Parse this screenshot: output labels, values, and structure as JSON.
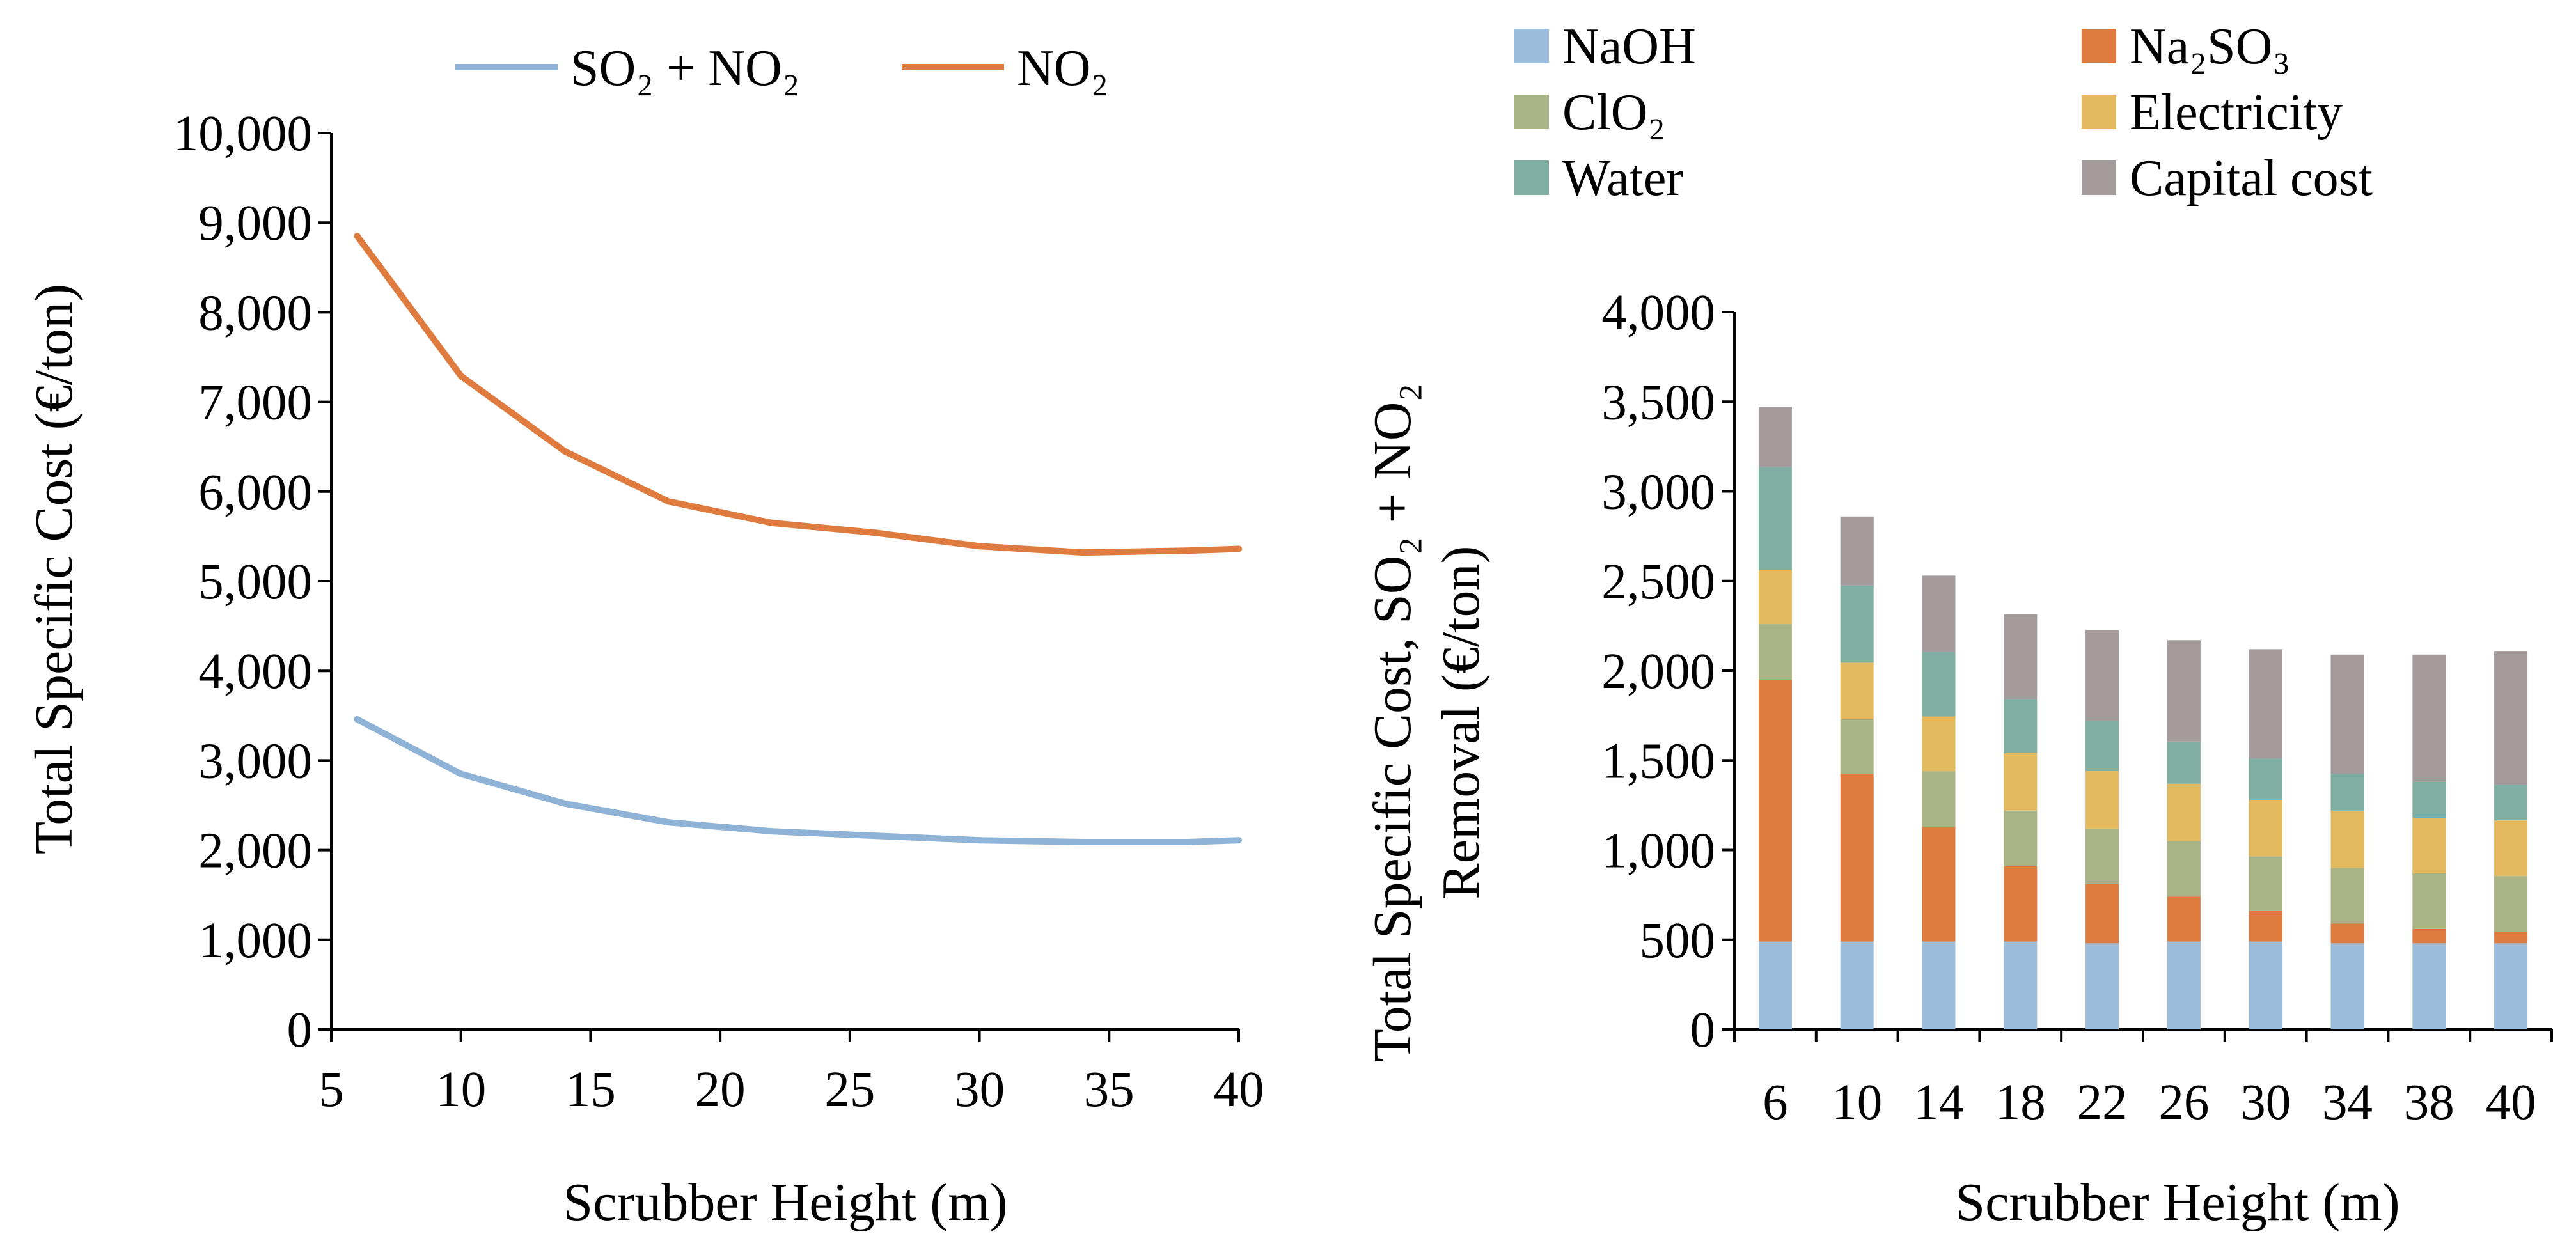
{
  "chart_data": [
    {
      "type": "line",
      "title": "",
      "xlabel": "Scrubber Height (m)",
      "ylabel": "Total Specific Cost (€/ton)",
      "xlim": [
        5,
        40
      ],
      "ylim": [
        0,
        10000
      ],
      "xticks": [
        "5",
        "10",
        "15",
        "20",
        "25",
        "30",
        "35",
        "40"
      ],
      "yticks": [
        "0",
        "1,000",
        "2,000",
        "3,000",
        "4,000",
        "5,000",
        "6,000",
        "7,000",
        "8,000",
        "9,000",
        "10,000"
      ],
      "legend_position": "top",
      "x": [
        6,
        10,
        14,
        18,
        22,
        26,
        30,
        34,
        38,
        40
      ],
      "series": [
        {
          "name": "SO₂ + NO₂",
          "color": "#8FB3D6",
          "values": [
            3460,
            2850,
            2520,
            2310,
            2210,
            2160,
            2110,
            2090,
            2090,
            2110
          ]
        },
        {
          "name": "NO₂",
          "color": "#E07B40",
          "values": [
            8850,
            7290,
            6450,
            5890,
            5650,
            5540,
            5390,
            5320,
            5340,
            5360
          ]
        }
      ]
    },
    {
      "type": "bar",
      "stacked": true,
      "title": "",
      "xlabel": "Scrubber Height (m)",
      "ylabel_line1": "Total Specific Cost, SO₂ + NO₂",
      "ylabel_line2": "Removal (€/ton)",
      "ylim": [
        0,
        4000
      ],
      "yticks": [
        "0",
        "500",
        "1,000",
        "1,500",
        "2,000",
        "2,500",
        "3,000",
        "3,500",
        "4,000"
      ],
      "legend_position": "top",
      "categories": [
        "6",
        "10",
        "14",
        "18",
        "22",
        "26",
        "30",
        "34",
        "38",
        "40"
      ],
      "series": [
        {
          "name": "NaOH",
          "color": "#9DBDDC",
          "values": [
            490,
            490,
            490,
            490,
            480,
            490,
            490,
            480,
            480,
            480
          ]
        },
        {
          "name": "Na₂SO₃",
          "color": "#E07B40",
          "values": [
            1460,
            935,
            640,
            420,
            330,
            250,
            170,
            110,
            80,
            65
          ]
        },
        {
          "name": "ClO₂",
          "color": "#A8B386",
          "values": [
            310,
            305,
            310,
            310,
            310,
            310,
            305,
            310,
            310,
            310
          ]
        },
        {
          "name": "Electricity",
          "color": "#E5BA5E",
          "values": [
            300,
            315,
            305,
            320,
            320,
            320,
            315,
            320,
            310,
            310
          ]
        },
        {
          "name": "Water",
          "color": "#7FAEA3",
          "values": [
            575,
            430,
            360,
            300,
            280,
            235,
            230,
            205,
            200,
            200
          ]
        },
        {
          "name": "Capital cost",
          "color": "#A39A9C",
          "values": [
            335,
            385,
            425,
            475,
            505,
            565,
            610,
            665,
            710,
            745
          ]
        }
      ]
    }
  ]
}
